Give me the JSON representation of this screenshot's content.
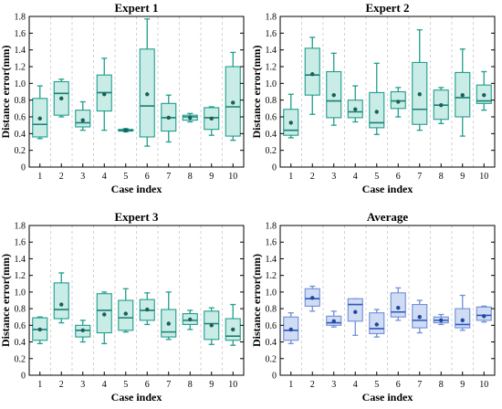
{
  "chart_data": [
    {
      "type": "box",
      "title": "Expert 1",
      "xlabel": "Case index",
      "ylabel": "Distance error(mm)",
      "ylim": [
        0,
        1.8
      ],
      "yticks": [
        "0",
        "0.2",
        "0.4",
        "0.6",
        "0.8",
        "1.0",
        "1.2",
        "1.4",
        "1.6",
        "1.8"
      ],
      "categories": [
        "1",
        "2",
        "3",
        "4",
        "5",
        "6",
        "7",
        "8",
        "9",
        "10"
      ],
      "colors": {
        "box_fill": "#c9ece6",
        "box_edge": "#1f9e8c",
        "median": "#1a7f74",
        "mean": "#17615a"
      },
      "boxes": [
        {
          "whislo": 0.34,
          "q1": 0.36,
          "med": 0.51,
          "q3": 0.82,
          "whishi": 0.97,
          "mean": 0.58
        },
        {
          "whislo": 0.6,
          "q1": 0.62,
          "med": 0.88,
          "q3": 1.02,
          "whishi": 1.05,
          "mean": 0.82
        },
        {
          "whislo": 0.44,
          "q1": 0.48,
          "med": 0.53,
          "q3": 0.68,
          "whishi": 0.78,
          "mean": 0.56
        },
        {
          "whislo": 0.44,
          "q1": 0.67,
          "med": 0.89,
          "q3": 1.1,
          "whishi": 1.3,
          "mean": 0.87
        },
        {
          "whislo": 0.42,
          "q1": 0.43,
          "med": 0.44,
          "q3": 0.45,
          "whishi": 0.46,
          "mean": 0.44
        },
        {
          "whislo": 0.25,
          "q1": 0.36,
          "med": 0.73,
          "q3": 1.41,
          "whishi": 1.77,
          "mean": 0.87
        },
        {
          "whislo": 0.3,
          "q1": 0.43,
          "med": 0.59,
          "q3": 0.76,
          "whishi": 0.86,
          "mean": 0.59
        },
        {
          "whislo": 0.54,
          "q1": 0.56,
          "med": 0.6,
          "q3": 0.62,
          "whishi": 0.64,
          "mean": 0.59
        },
        {
          "whislo": 0.38,
          "q1": 0.45,
          "med": 0.59,
          "q3": 0.71,
          "whishi": 0.72,
          "mean": 0.58
        },
        {
          "whislo": 0.32,
          "q1": 0.37,
          "med": 0.72,
          "q3": 1.2,
          "whishi": 1.37,
          "mean": 0.77
        }
      ]
    },
    {
      "type": "box",
      "title": "Expert 2",
      "xlabel": "Case index",
      "ylabel": "Distance error(mm)",
      "ylim": [
        0,
        1.8
      ],
      "yticks": [
        "0",
        "0.2",
        "0.4",
        "0.6",
        "0.8",
        "1.0",
        "1.2",
        "1.4",
        "1.6",
        "1.8"
      ],
      "categories": [
        "1",
        "2",
        "3",
        "4",
        "5",
        "6",
        "7",
        "8",
        "9",
        "10"
      ],
      "colors": {
        "box_fill": "#c9ece6",
        "box_edge": "#1f9e8c",
        "median": "#1a7f74",
        "mean": "#17615a"
      },
      "boxes": [
        {
          "whislo": 0.35,
          "q1": 0.38,
          "med": 0.44,
          "q3": 0.69,
          "whishi": 0.87,
          "mean": 0.53
        },
        {
          "whislo": 0.63,
          "q1": 0.86,
          "med": 1.1,
          "q3": 1.42,
          "whishi": 1.55,
          "mean": 1.11
        },
        {
          "whislo": 0.5,
          "q1": 0.59,
          "med": 0.79,
          "q3": 1.14,
          "whishi": 1.36,
          "mean": 0.86
        },
        {
          "whislo": 0.54,
          "q1": 0.59,
          "med": 0.66,
          "q3": 0.8,
          "whishi": 0.97,
          "mean": 0.69
        },
        {
          "whislo": 0.39,
          "q1": 0.47,
          "med": 0.53,
          "q3": 0.89,
          "whishi": 1.24,
          "mean": 0.66
        },
        {
          "whislo": 0.6,
          "q1": 0.7,
          "med": 0.79,
          "q3": 0.9,
          "whishi": 0.95,
          "mean": 0.78
        },
        {
          "whislo": 0.44,
          "q1": 0.51,
          "med": 0.69,
          "q3": 1.25,
          "whishi": 1.64,
          "mean": 0.87
        },
        {
          "whislo": 0.52,
          "q1": 0.57,
          "med": 0.74,
          "q3": 0.92,
          "whishi": 0.95,
          "mean": 0.74
        },
        {
          "whislo": 0.37,
          "q1": 0.6,
          "med": 0.83,
          "q3": 1.13,
          "whishi": 1.41,
          "mean": 0.86
        },
        {
          "whislo": 0.68,
          "q1": 0.76,
          "med": 0.79,
          "q3": 0.98,
          "whishi": 1.14,
          "mean": 0.86
        }
      ]
    },
    {
      "type": "box",
      "title": "Expert 3",
      "xlabel": "Case index",
      "ylabel": "Distance error(mm)",
      "ylim": [
        0,
        1.8
      ],
      "yticks": [
        "0",
        "0.2",
        "0.4",
        "0.6",
        "0.8",
        "1.0",
        "1.2",
        "1.4",
        "1.6",
        "1.8"
      ],
      "categories": [
        "1",
        "2",
        "3",
        "4",
        "5",
        "6",
        "7",
        "8",
        "9",
        "10"
      ],
      "colors": {
        "box_fill": "#c9ece6",
        "box_edge": "#1f9e8c",
        "median": "#1a7f74",
        "mean": "#17615a"
      },
      "boxes": [
        {
          "whislo": 0.38,
          "q1": 0.42,
          "med": 0.55,
          "q3": 0.69,
          "whishi": 0.7,
          "mean": 0.55
        },
        {
          "whislo": 0.63,
          "q1": 0.68,
          "med": 0.79,
          "q3": 1.11,
          "whishi": 1.23,
          "mean": 0.85
        },
        {
          "whislo": 0.4,
          "q1": 0.46,
          "med": 0.54,
          "q3": 0.6,
          "whishi": 0.66,
          "mean": 0.54
        },
        {
          "whislo": 0.38,
          "q1": 0.51,
          "med": 0.78,
          "q3": 0.98,
          "whishi": 1.0,
          "mean": 0.73
        },
        {
          "whislo": 0.52,
          "q1": 0.54,
          "med": 0.69,
          "q3": 0.9,
          "whishi": 1.04,
          "mean": 0.74
        },
        {
          "whislo": 0.61,
          "q1": 0.66,
          "med": 0.78,
          "q3": 0.91,
          "whishi": 0.99,
          "mean": 0.79
        },
        {
          "whislo": 0.43,
          "q1": 0.46,
          "med": 0.52,
          "q3": 0.79,
          "whishi": 1.0,
          "mean": 0.62
        },
        {
          "whislo": 0.55,
          "q1": 0.61,
          "med": 0.66,
          "q3": 0.74,
          "whishi": 0.78,
          "mean": 0.67
        },
        {
          "whislo": 0.37,
          "q1": 0.43,
          "med": 0.62,
          "q3": 0.77,
          "whishi": 0.81,
          "mean": 0.6
        },
        {
          "whislo": 0.36,
          "q1": 0.42,
          "med": 0.47,
          "q3": 0.68,
          "whishi": 0.85,
          "mean": 0.55
        }
      ]
    },
    {
      "type": "box",
      "title": "Average",
      "xlabel": "Case index",
      "ylabel": "Distance error(mm)",
      "ylim": [
        0,
        1.8
      ],
      "yticks": [
        "0",
        "0.2",
        "0.4",
        "0.6",
        "0.8",
        "1.0",
        "1.2",
        "1.4",
        "1.6",
        "1.8"
      ],
      "categories": [
        "1",
        "2",
        "3",
        "4",
        "5",
        "6",
        "7",
        "8",
        "9",
        "10"
      ],
      "colors": {
        "box_fill": "#cfdcf4",
        "box_edge": "#6f8fd6",
        "median": "#2f55b8",
        "mean": "#2346a3"
      },
      "boxes": [
        {
          "whislo": 0.38,
          "q1": 0.42,
          "med": 0.54,
          "q3": 0.7,
          "whishi": 0.75,
          "mean": 0.55
        },
        {
          "whislo": 0.77,
          "q1": 0.83,
          "med": 0.92,
          "q3": 1.04,
          "whishi": 1.07,
          "mean": 0.93
        },
        {
          "whislo": 0.58,
          "q1": 0.6,
          "med": 0.63,
          "q3": 0.71,
          "whishi": 0.77,
          "mean": 0.65
        },
        {
          "whislo": 0.48,
          "q1": 0.65,
          "med": 0.85,
          "q3": 0.92,
          "whishi": 0.92,
          "mean": 0.76
        },
        {
          "whislo": 0.46,
          "q1": 0.5,
          "med": 0.56,
          "q3": 0.75,
          "whishi": 0.79,
          "mean": 0.61
        },
        {
          "whislo": 0.66,
          "q1": 0.7,
          "med": 0.76,
          "q3": 0.99,
          "whishi": 1.05,
          "mean": 0.81
        },
        {
          "whislo": 0.51,
          "q1": 0.57,
          "med": 0.66,
          "q3": 0.85,
          "whishi": 0.9,
          "mean": 0.7
        },
        {
          "whislo": 0.61,
          "q1": 0.63,
          "med": 0.66,
          "q3": 0.7,
          "whishi": 0.73,
          "mean": 0.66
        },
        {
          "whislo": 0.54,
          "q1": 0.57,
          "med": 0.61,
          "q3": 0.8,
          "whishi": 0.96,
          "mean": 0.66
        },
        {
          "whislo": 0.64,
          "q1": 0.66,
          "med": 0.72,
          "q3": 0.82,
          "whishi": 0.83,
          "mean": 0.71
        }
      ]
    }
  ]
}
